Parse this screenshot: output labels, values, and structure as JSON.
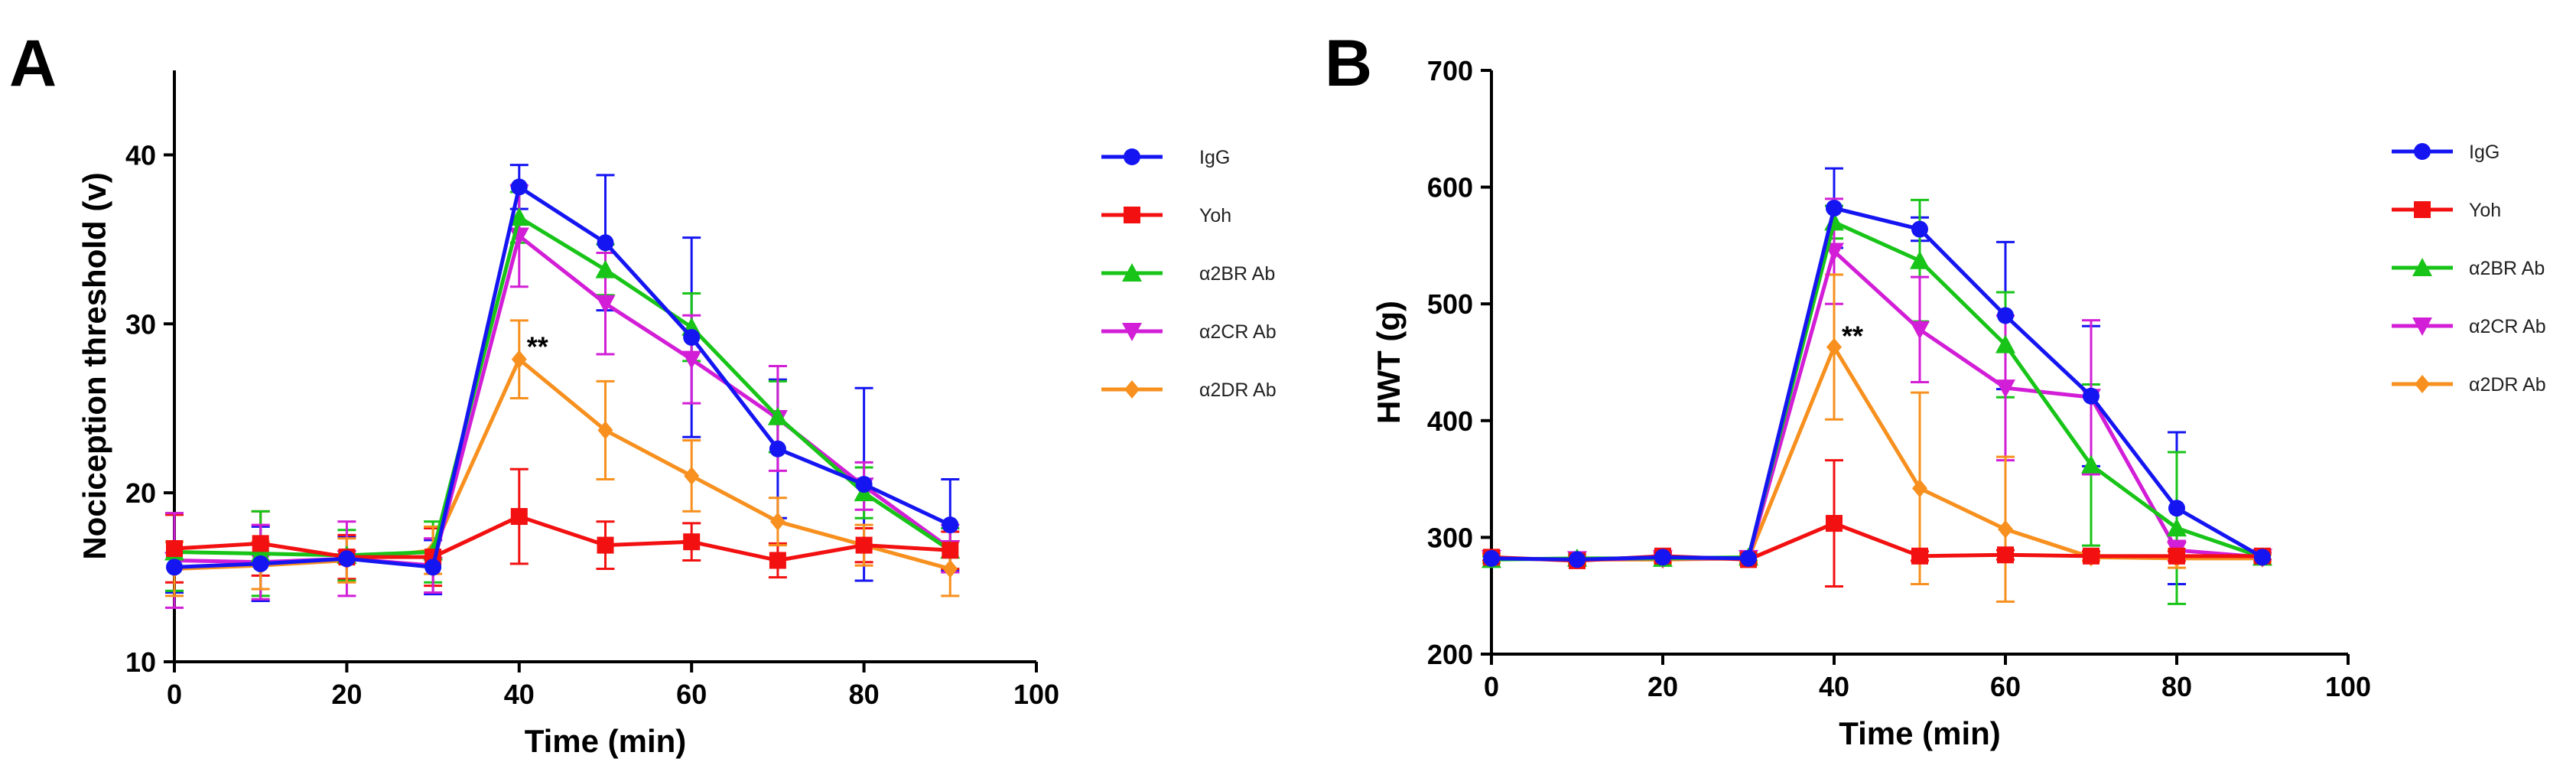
{
  "chart_data": [
    {
      "panel": "A",
      "type": "line",
      "title": "",
      "xlabel": "Time (min)",
      "ylabel": "Nociception threshold (v)",
      "xlim": [
        0,
        100
      ],
      "ylim": [
        10,
        45
      ],
      "xticks": [
        0,
        20,
        40,
        60,
        80,
        100
      ],
      "yticks": [
        10,
        20,
        30,
        40
      ],
      "x": [
        0,
        10,
        20,
        30,
        40,
        50,
        60,
        70,
        80,
        90
      ],
      "legend_position": "right",
      "series": [
        {
          "name": "IgG",
          "color": "#1515f2",
          "marker": "circle",
          "values": [
            15.6,
            15.8,
            16.1,
            15.6,
            38.1,
            34.8,
            29.2,
            22.6,
            20.5,
            18.1
          ],
          "errors": [
            1.5,
            2.2,
            1.3,
            1.6,
            1.3,
            4.0,
            5.9,
            4.1,
            5.7,
            2.7
          ]
        },
        {
          "name": "Yoh",
          "color": "#f21010",
          "marker": "square",
          "values": [
            16.7,
            17.0,
            16.2,
            16.2,
            18.6,
            16.9,
            17.1,
            16.0,
            16.9,
            16.6
          ],
          "errors": [
            2.0,
            1.9,
            1.3,
            1.7,
            2.8,
            1.4,
            1.1,
            1.0,
            1.0,
            1.1
          ]
        },
        {
          "name": "α2BR Ab",
          "color": "#18c418",
          "marker": "triangle-up",
          "values": [
            16.5,
            16.4,
            16.3,
            16.5,
            36.3,
            33.2,
            29.8,
            24.5,
            20.0,
            16.6
          ],
          "errors": [
            2.3,
            2.5,
            1.5,
            1.8,
            1.5,
            1.5,
            2.0,
            2.1,
            1.5,
            1.3
          ]
        },
        {
          "name": "α2CR Ab",
          "color": "#d21ed6",
          "marker": "triangle-down",
          "values": [
            16.0,
            15.9,
            16.1,
            15.7,
            35.2,
            31.2,
            27.9,
            24.4,
            20.4,
            16.7
          ],
          "errors": [
            2.8,
            2.2,
            2.2,
            1.6,
            3.0,
            3.0,
            2.6,
            3.1,
            1.4,
            1.4
          ]
        },
        {
          "name": "α2DR Ab",
          "color": "#f7901e",
          "marker": "diamond",
          "values": [
            15.5,
            15.7,
            16.0,
            16.6,
            27.9,
            23.7,
            21.0,
            18.3,
            16.9,
            15.5
          ],
          "errors": [
            1.6,
            1.4,
            1.3,
            1.4,
            2.3,
            2.9,
            2.1,
            1.4,
            1.2,
            1.6
          ]
        }
      ],
      "annotations": [
        {
          "x": 40,
          "y": 28.0,
          "text": "**"
        }
      ]
    },
    {
      "panel": "B",
      "type": "line",
      "title": "",
      "xlabel": "Time (min)",
      "ylabel": "HWT (g)",
      "xlim": [
        0,
        100
      ],
      "ylim": [
        200,
        700
      ],
      "xticks": [
        0,
        20,
        40,
        60,
        80,
        100
      ],
      "yticks": [
        200,
        300,
        400,
        500,
        600,
        700
      ],
      "x": [
        0,
        10,
        20,
        30,
        40,
        50,
        60,
        70,
        80,
        90
      ],
      "legend_position": "right",
      "series": [
        {
          "name": "IgG",
          "color": "#1515f2",
          "marker": "circle",
          "values": [
            282,
            281,
            283,
            282,
            582,
            564,
            490,
            421,
            325,
            283
          ],
          "errors": [
            3,
            3,
            3,
            3,
            34,
            10,
            63,
            60,
            65,
            3
          ]
        },
        {
          "name": "Yoh",
          "color": "#f21010",
          "marker": "square",
          "values": [
            283,
            280,
            284,
            281,
            312,
            284,
            285,
            284,
            284,
            284
          ],
          "errors": [
            3,
            3,
            3,
            3,
            54,
            4,
            4,
            4,
            4,
            3
          ]
        },
        {
          "name": "α2BR Ab",
          "color": "#18c418",
          "marker": "triangle-up",
          "values": [
            281,
            282,
            282,
            283,
            570,
            537,
            465,
            362,
            308,
            283
          ],
          "errors": [
            3,
            3,
            3,
            3,
            14,
            52,
            45,
            69,
            65,
            3
          ]
        },
        {
          "name": "α2CR Ab",
          "color": "#d21ed6",
          "marker": "triangle-down",
          "values": [
            282,
            281,
            282,
            282,
            545,
            478,
            428,
            420,
            289,
            283
          ],
          "errors": [
            3,
            3,
            3,
            3,
            45,
            45,
            62,
            66,
            8,
            3
          ]
        },
        {
          "name": "α2DR Ab",
          "color": "#f7901e",
          "marker": "diamond",
          "values": [
            282,
            281,
            281,
            282,
            463,
            342,
            307,
            283,
            282,
            282
          ],
          "errors": [
            3,
            3,
            3,
            3,
            62,
            82,
            62,
            3,
            8,
            3
          ]
        }
      ],
      "annotations": [
        {
          "x": 40,
          "y": 463,
          "text": "**"
        }
      ]
    }
  ]
}
